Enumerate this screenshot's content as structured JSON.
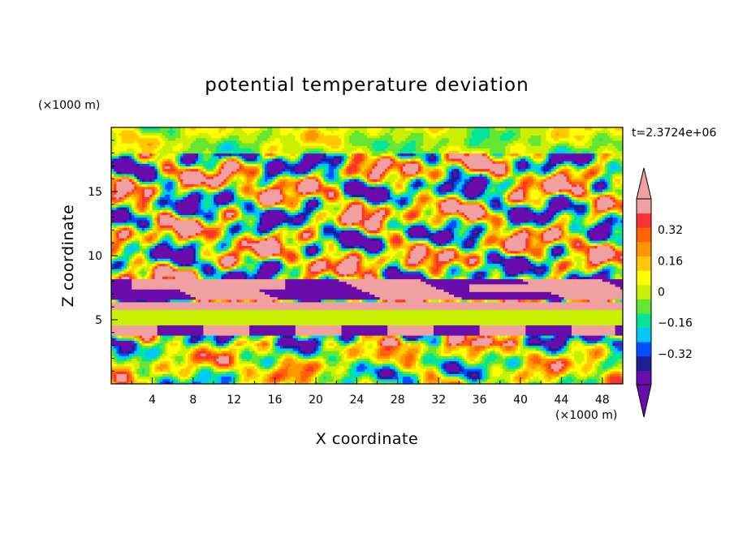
{
  "chart_data": {
    "type": "heatmap",
    "title": "potential temperature deviation",
    "xlabel": "X coordinate",
    "ylabel": "Z coordinate",
    "x_unit": "(×1000 m)",
    "y_unit": "(×1000 m)",
    "time_label": "t=2.3724e+06",
    "xlim": [
      0,
      50
    ],
    "ylim": [
      0,
      20
    ],
    "x_ticks": [
      "4",
      "8",
      "12",
      "16",
      "20",
      "24",
      "28",
      "32",
      "36",
      "40",
      "44",
      "48"
    ],
    "y_ticks": [
      "5",
      "10",
      "15"
    ],
    "colorbar": {
      "range": [
        -0.48,
        0.48
      ],
      "tick_labels": [
        "0.32",
        "0.16",
        "0",
        "−0.16",
        "−0.32"
      ],
      "tick_values": [
        0.32,
        0.16,
        0,
        -0.16,
        -0.32
      ],
      "colors": [
        "#6a0dad",
        "#1e1e96",
        "#0050ff",
        "#00c8ff",
        "#00e696",
        "#64e632",
        "#c8f000",
        "#ffff00",
        "#ffc800",
        "#ff9600",
        "#ff6400",
        "#ff3232",
        "#f0a0a0"
      ],
      "extend_low_color": "#6a0dad",
      "extend_high_color": "#f0a0a0"
    },
    "field_description": "layered positive/negative anomalies; strongest in 3–18 km band"
  }
}
